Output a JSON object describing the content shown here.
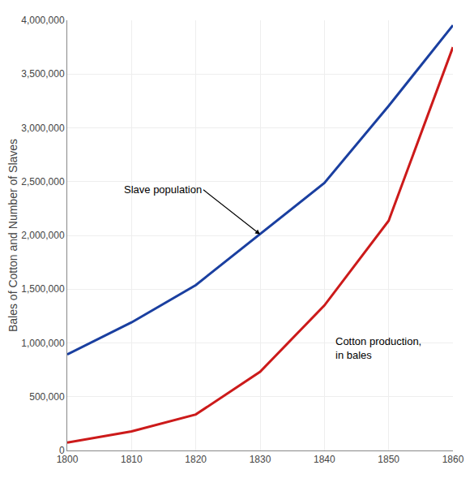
{
  "chart_data": {
    "type": "line",
    "x": [
      1800,
      1810,
      1820,
      1830,
      1840,
      1850,
      1860
    ],
    "series": [
      {
        "name": "Slave population",
        "color": "#1a3fa0",
        "values": [
          893000,
          1191000,
          1538000,
          2009000,
          2487000,
          3204000,
          3954000
        ]
      },
      {
        "name": "Cotton production,\nin bales",
        "color": "#cc1a1a",
        "values": [
          73000,
          178000,
          335000,
          732000,
          1348000,
          2136000,
          3750000
        ]
      }
    ],
    "ylabel": "Bales of Cotton and Number of Slaves",
    "xlim": [
      1800,
      1860
    ],
    "xticks": [
      1800,
      1810,
      1820,
      1830,
      1840,
      1850,
      1860
    ],
    "ylim": [
      0,
      4000000
    ],
    "yticks": [
      0,
      {
        "value": 500000,
        "label": "500,000"
      },
      {
        "value": 1000000,
        "label": "1,000,000"
      },
      {
        "value": 1500000,
        "label": "1,500,000"
      },
      {
        "value": 2000000,
        "label": "2,000,000"
      },
      {
        "value": 2500000,
        "label": "2,500,000"
      },
      {
        "value": 3000000,
        "label": "3,000,000"
      },
      {
        "value": 3500000,
        "label": "3,500,000"
      },
      {
        "value": 4000000,
        "label": "4,000,000"
      }
    ],
    "grid": true
  }
}
